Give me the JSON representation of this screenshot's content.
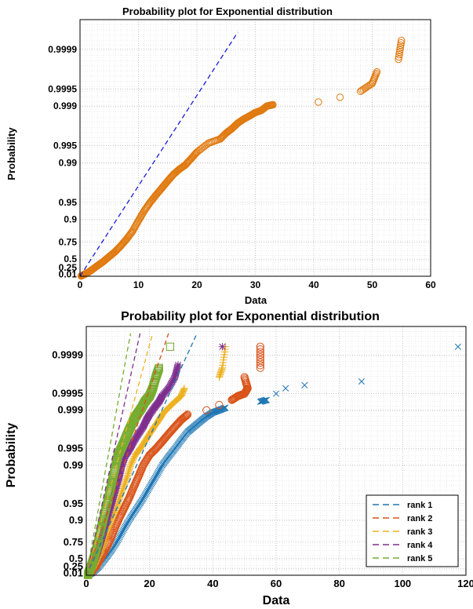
{
  "chart_data": [
    {
      "type": "scatter",
      "title": "Probability plot for Exponential distribution",
      "xlabel": "Data",
      "ylabel": "Probability",
      "xlim": [
        0,
        60
      ],
      "x_ticks": [
        0,
        10,
        20,
        30,
        40,
        50,
        60
      ],
      "y_scale": "exponential-probability",
      "y_ticks": [
        0.01,
        0.25,
        0.5,
        0.75,
        0.9,
        0.95,
        0.99,
        0.995,
        0.999,
        0.9995,
        0.9999
      ],
      "y_tick_labels": [
        "0.01",
        "0.25",
        "0.5",
        "0.75",
        "0.9",
        "0.95",
        "0.99",
        "0.995",
        "0.999",
        "0.9995",
        "0.9999"
      ],
      "grid": true,
      "series": [
        {
          "marker": "circle",
          "color": "#e07a10",
          "points": [
            [
              0.2,
              0.01
            ],
            [
              0.8,
              0.08
            ],
            [
              1.5,
              0.16
            ],
            [
              2.2,
              0.25
            ],
            [
              3,
              0.35
            ],
            [
              4,
              0.45
            ],
            [
              5,
              0.55
            ],
            [
              6,
              0.63
            ],
            [
              7,
              0.71
            ],
            [
              8,
              0.78
            ],
            [
              9,
              0.84
            ],
            [
              10,
              0.895
            ],
            [
              11,
              0.93
            ],
            [
              12,
              0.95
            ],
            [
              13,
              0.963
            ],
            [
              14,
              0.972
            ],
            [
              15,
              0.979
            ],
            [
              16,
              0.984
            ],
            [
              17,
              0.987
            ],
            [
              18,
              0.989
            ],
            [
              19,
              0.9915
            ],
            [
              20,
              0.9935
            ],
            [
              22,
              0.9955
            ],
            [
              24,
              0.9962
            ],
            [
              25,
              0.997
            ],
            [
              26,
              0.9975
            ],
            [
              27,
              0.998
            ],
            [
              28,
              0.9983
            ],
            [
              29,
              0.9985
            ],
            [
              30,
              0.9987
            ],
            [
              31,
              0.9988
            ],
            [
              32,
              0.999
            ],
            [
              33,
              0.99905
            ],
            [
              40.8,
              0.99915
            ],
            [
              44.5,
              0.9993
            ],
            [
              48,
              0.99945
            ],
            [
              50,
              0.9996
            ],
            [
              50.8,
              0.99975
            ],
            [
              54.5,
              0.99985
            ],
            [
              55,
              0.99993
            ]
          ]
        },
        {
          "line": "dashed",
          "color": "#1a1adb",
          "points": [
            [
              0,
              0
            ],
            [
              27,
              0.99995
            ]
          ]
        }
      ]
    },
    {
      "type": "scatter",
      "title": "Probability plot for Exponential distribution",
      "xlabel": "Data",
      "ylabel": "Probability",
      "xlim": [
        0,
        120
      ],
      "x_ticks": [
        0,
        20,
        40,
        60,
        80,
        100,
        120
      ],
      "y_scale": "exponential-probability",
      "y_ticks": [
        0.01,
        0.25,
        0.5,
        0.75,
        0.9,
        0.95,
        0.99,
        0.995,
        0.999,
        0.9995,
        0.9999
      ],
      "y_tick_labels": [
        "0.01",
        "0.25",
        "0.5",
        "0.75",
        "0.9",
        "0.95",
        "0.99",
        "0.995",
        "0.999",
        "0.9995",
        "0.9999"
      ],
      "grid": true,
      "legend_position": "bottom-right",
      "series": [
        {
          "name": "rank 1",
          "marker": "x",
          "color": "#1f77b4",
          "points": [
            [
              0.5,
              0.01
            ],
            [
              2,
              0.1
            ],
            [
              4,
              0.3
            ],
            [
              6,
              0.5
            ],
            [
              8,
              0.65
            ],
            [
              10,
              0.77
            ],
            [
              12,
              0.86
            ],
            [
              14,
              0.91
            ],
            [
              16,
              0.94
            ],
            [
              18,
              0.96
            ],
            [
              20,
              0.975
            ],
            [
              22,
              0.984
            ],
            [
              24,
              0.99
            ],
            [
              26,
              0.993
            ],
            [
              28,
              0.995
            ],
            [
              30,
              0.9965
            ],
            [
              32,
              0.9975
            ],
            [
              34,
              0.998
            ],
            [
              36,
              0.9984
            ],
            [
              38,
              0.9987
            ],
            [
              40,
              0.9989
            ],
            [
              42,
              0.999
            ],
            [
              44,
              0.9991
            ],
            [
              55,
              0.9993
            ],
            [
              57,
              0.99935
            ],
            [
              60,
              0.9995
            ],
            [
              63,
              0.9996
            ],
            [
              69,
              0.99965
            ],
            [
              87,
              0.9997
            ],
            [
              117.5,
              0.99993
            ]
          ]
        },
        {
          "name": "rank 2",
          "marker": "circle",
          "color": "#d95319",
          "points": [
            [
              0.5,
              0.01
            ],
            [
              1.5,
              0.1
            ],
            [
              3,
              0.3
            ],
            [
              4.5,
              0.5
            ],
            [
              6,
              0.65
            ],
            [
              7.5,
              0.77
            ],
            [
              9,
              0.86
            ],
            [
              10.5,
              0.91
            ],
            [
              12,
              0.94
            ],
            [
              13.5,
              0.96
            ],
            [
              15,
              0.975
            ],
            [
              16.5,
              0.984
            ],
            [
              18,
              0.99
            ],
            [
              20,
              0.9935
            ],
            [
              22,
              0.995
            ],
            [
              24,
              0.9963
            ],
            [
              26,
              0.9973
            ],
            [
              28,
              0.998
            ],
            [
              30,
              0.9985
            ],
            [
              32,
              0.9988
            ],
            [
              38,
              0.999
            ],
            [
              42,
              0.9992
            ],
            [
              46,
              0.99935
            ],
            [
              48,
              0.99945
            ],
            [
              50,
              0.9995
            ],
            [
              51,
              0.9996
            ],
            [
              50,
              0.99975
            ],
            [
              55,
              0.99983
            ],
            [
              55,
              0.99993
            ]
          ]
        },
        {
          "name": "rank 3",
          "marker": "plus",
          "color": "#edb120",
          "points": [
            [
              0.5,
              0.01
            ],
            [
              1.2,
              0.1
            ],
            [
              2.3,
              0.3
            ],
            [
              3.5,
              0.5
            ],
            [
              4.7,
              0.65
            ],
            [
              6,
              0.77
            ],
            [
              7,
              0.86
            ],
            [
              8.2,
              0.91
            ],
            [
              9.5,
              0.94
            ],
            [
              10.5,
              0.96
            ],
            [
              11.8,
              0.975
            ],
            [
              13,
              0.984
            ],
            [
              14,
              0.99
            ],
            [
              15.5,
              0.9935
            ],
            [
              17,
              0.995
            ],
            [
              18.5,
              0.9963
            ],
            [
              20,
              0.9973
            ],
            [
              21.5,
              0.998
            ],
            [
              23,
              0.9985
            ],
            [
              24,
              0.9988
            ],
            [
              26,
              0.9991
            ],
            [
              28,
              0.9993
            ],
            [
              30,
              0.99945
            ],
            [
              31,
              0.9996
            ],
            [
              42,
              0.99975
            ],
            [
              43,
              0.99983
            ],
            [
              44,
              0.99993
            ]
          ]
        },
        {
          "name": "rank 4",
          "marker": "star",
          "color": "#7e2f8e",
          "points": [
            [
              0.5,
              0.01
            ],
            [
              1,
              0.1
            ],
            [
              1.9,
              0.3
            ],
            [
              2.8,
              0.5
            ],
            [
              3.8,
              0.65
            ],
            [
              4.8,
              0.77
            ],
            [
              5.8,
              0.86
            ],
            [
              6.7,
              0.91
            ],
            [
              7.6,
              0.94
            ],
            [
              8.5,
              0.96
            ],
            [
              9.5,
              0.975
            ],
            [
              10.5,
              0.984
            ],
            [
              11.3,
              0.99
            ],
            [
              12.5,
              0.9935
            ],
            [
              13.8,
              0.995
            ],
            [
              15,
              0.9963
            ],
            [
              16.5,
              0.9973
            ],
            [
              18,
              0.998
            ],
            [
              19,
              0.9985
            ],
            [
              20,
              0.9988
            ],
            [
              21.5,
              0.9991
            ],
            [
              23,
              0.9993
            ],
            [
              24,
              0.99945
            ],
            [
              26,
              0.9996
            ],
            [
              28,
              0.99975
            ],
            [
              29,
              0.99985
            ],
            [
              43,
              0.99993
            ]
          ]
        },
        {
          "name": "rank 5",
          "marker": "square",
          "color": "#77ac30",
          "points": [
            [
              0.5,
              0.01
            ],
            [
              0.8,
              0.1
            ],
            [
              1.5,
              0.3
            ],
            [
              2.3,
              0.5
            ],
            [
              3.1,
              0.65
            ],
            [
              3.9,
              0.77
            ],
            [
              4.7,
              0.86
            ],
            [
              5.5,
              0.91
            ],
            [
              6.2,
              0.94
            ],
            [
              7,
              0.96
            ],
            [
              7.8,
              0.975
            ],
            [
              8.5,
              0.984
            ],
            [
              9.3,
              0.99
            ],
            [
              10,
              0.9935
            ],
            [
              11,
              0.995
            ],
            [
              12,
              0.9963
            ],
            [
              13,
              0.9973
            ],
            [
              14,
              0.998
            ],
            [
              15,
              0.9985
            ],
            [
              16,
              0.9988
            ],
            [
              17.5,
              0.9991
            ],
            [
              18.5,
              0.9993
            ],
            [
              20,
              0.99945
            ],
            [
              21,
              0.9996
            ],
            [
              22,
              0.99975
            ],
            [
              23,
              0.99983
            ],
            [
              26.5,
              0.99993
            ]
          ]
        },
        {
          "line": "dashed",
          "color": "#1f77b4",
          "points": [
            [
              0,
              0
            ],
            [
              35,
              0.99996
            ]
          ]
        },
        {
          "line": "dashed",
          "color": "#d95319",
          "points": [
            [
              0,
              0
            ],
            [
              26,
              0.99996
            ]
          ]
        },
        {
          "line": "dashed",
          "color": "#edb120",
          "points": [
            [
              0,
              0
            ],
            [
              21,
              0.99996
            ]
          ]
        },
        {
          "line": "dashed",
          "color": "#7e2f8e",
          "points": [
            [
              0,
              0
            ],
            [
              17,
              0.99996
            ]
          ]
        },
        {
          "line": "dashed",
          "color": "#77ac30",
          "points": [
            [
              0,
              0
            ],
            [
              14,
              0.99996
            ]
          ]
        }
      ]
    }
  ]
}
